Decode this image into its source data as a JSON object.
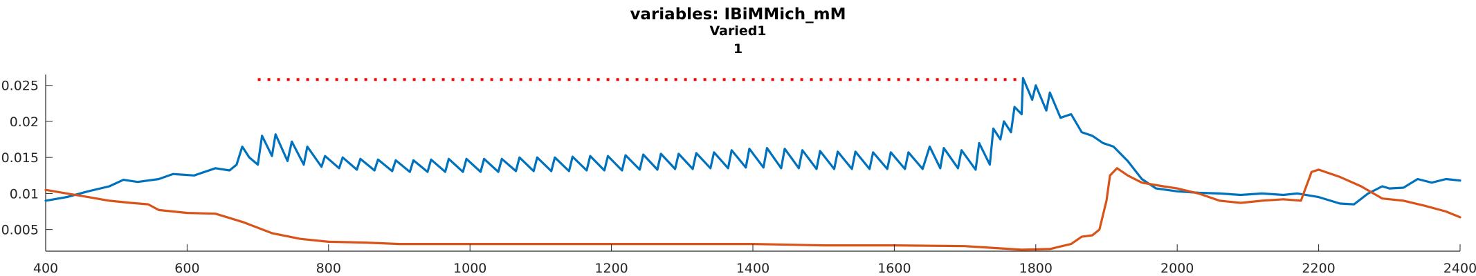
{
  "titles": [
    "variables: IBiMMich_mM",
    "Varied1",
    "1"
  ],
  "chart_data": {
    "type": "line",
    "title": "variables: IBiMMich_mM",
    "subtitle": [
      "Varied1",
      "1"
    ],
    "xlabel": "",
    "ylabel": "",
    "xlim": [
      400,
      2400
    ],
    "ylim": [
      0.002,
      0.0265
    ],
    "grid": false,
    "x_ticks": [
      400,
      600,
      800,
      1000,
      1200,
      1400,
      1600,
      1800,
      2000,
      2200,
      2400
    ],
    "x_tick_labels": [
      "400",
      "600",
      "800",
      "1000",
      "1200",
      "1400",
      "1600",
      "1800",
      "2000",
      "2200",
      "2400"
    ],
    "y_ticks": [
      0.005,
      0.01,
      0.015,
      0.02,
      0.025
    ],
    "y_tick_labels": [
      "0.005",
      "0.01",
      "0.015",
      "0.02",
      "0.025"
    ],
    "colors": {
      "blue": "#0072BD",
      "orange": "#D95319",
      "red": "#FF0000"
    },
    "series": [
      {
        "color": "#0072BD",
        "style": "solid",
        "points": [
          [
            400,
            0.009
          ],
          [
            430,
            0.0095
          ],
          [
            460,
            0.0103
          ],
          [
            490,
            0.011
          ],
          [
            510,
            0.0119
          ],
          [
            530,
            0.0116
          ],
          [
            560,
            0.012
          ],
          [
            580,
            0.0127
          ],
          [
            610,
            0.0125
          ],
          [
            640,
            0.0135
          ],
          [
            660,
            0.0132
          ],
          [
            670,
            0.014
          ],
          [
            678,
            0.0165
          ],
          [
            688,
            0.015
          ],
          [
            700,
            0.014
          ],
          [
            706,
            0.018
          ],
          [
            720,
            0.0152
          ],
          [
            725,
            0.0182
          ],
          [
            742,
            0.0145
          ],
          [
            748,
            0.0172
          ],
          [
            765,
            0.014
          ],
          [
            770,
            0.0165
          ],
          [
            790,
            0.0137
          ],
          [
            795,
            0.0152
          ],
          [
            815,
            0.0135
          ],
          [
            820,
            0.015
          ],
          [
            840,
            0.0133
          ],
          [
            845,
            0.0148
          ],
          [
            865,
            0.0132
          ],
          [
            870,
            0.0147
          ],
          [
            890,
            0.0131
          ],
          [
            895,
            0.0146
          ],
          [
            915,
            0.013
          ],
          [
            920,
            0.0146
          ],
          [
            940,
            0.013
          ],
          [
            945,
            0.0147
          ],
          [
            965,
            0.013
          ],
          [
            970,
            0.0148
          ],
          [
            990,
            0.013
          ],
          [
            995,
            0.0148
          ],
          [
            1015,
            0.013
          ],
          [
            1020,
            0.0148
          ],
          [
            1040,
            0.013
          ],
          [
            1045,
            0.0148
          ],
          [
            1065,
            0.0131
          ],
          [
            1070,
            0.015
          ],
          [
            1090,
            0.0131
          ],
          [
            1095,
            0.015
          ],
          [
            1115,
            0.0131
          ],
          [
            1120,
            0.015
          ],
          [
            1140,
            0.0131
          ],
          [
            1145,
            0.0151
          ],
          [
            1165,
            0.0132
          ],
          [
            1170,
            0.0152
          ],
          [
            1190,
            0.0132
          ],
          [
            1195,
            0.0152
          ],
          [
            1215,
            0.0132
          ],
          [
            1220,
            0.0153
          ],
          [
            1240,
            0.0133
          ],
          [
            1245,
            0.0154
          ],
          [
            1265,
            0.0133
          ],
          [
            1270,
            0.0155
          ],
          [
            1290,
            0.0134
          ],
          [
            1295,
            0.0155
          ],
          [
            1315,
            0.0134
          ],
          [
            1320,
            0.0156
          ],
          [
            1340,
            0.0135
          ],
          [
            1345,
            0.0157
          ],
          [
            1365,
            0.0135
          ],
          [
            1370,
            0.016
          ],
          [
            1390,
            0.0136
          ],
          [
            1395,
            0.0162
          ],
          [
            1415,
            0.0136
          ],
          [
            1420,
            0.0163
          ],
          [
            1440,
            0.0135
          ],
          [
            1445,
            0.0162
          ],
          [
            1465,
            0.0135
          ],
          [
            1470,
            0.016
          ],
          [
            1490,
            0.0134
          ],
          [
            1495,
            0.0159
          ],
          [
            1515,
            0.0134
          ],
          [
            1520,
            0.0158
          ],
          [
            1540,
            0.0134
          ],
          [
            1545,
            0.0158
          ],
          [
            1565,
            0.0134
          ],
          [
            1570,
            0.0157
          ],
          [
            1590,
            0.0134
          ],
          [
            1595,
            0.0157
          ],
          [
            1615,
            0.0134
          ],
          [
            1620,
            0.0157
          ],
          [
            1640,
            0.0134
          ],
          [
            1650,
            0.0165
          ],
          [
            1665,
            0.0135
          ],
          [
            1670,
            0.0163
          ],
          [
            1690,
            0.0135
          ],
          [
            1695,
            0.016
          ],
          [
            1715,
            0.0133
          ],
          [
            1720,
            0.017
          ],
          [
            1735,
            0.014
          ],
          [
            1740,
            0.019
          ],
          [
            1750,
            0.0175
          ],
          [
            1755,
            0.02
          ],
          [
            1765,
            0.0185
          ],
          [
            1770,
            0.022
          ],
          [
            1780,
            0.021
          ],
          [
            1782,
            0.026
          ],
          [
            1795,
            0.023
          ],
          [
            1800,
            0.025
          ],
          [
            1815,
            0.0215
          ],
          [
            1820,
            0.024
          ],
          [
            1835,
            0.0205
          ],
          [
            1850,
            0.021
          ],
          [
            1865,
            0.0185
          ],
          [
            1880,
            0.018
          ],
          [
            1895,
            0.017
          ],
          [
            1910,
            0.0165
          ],
          [
            1930,
            0.0145
          ],
          [
            1950,
            0.012
          ],
          [
            1970,
            0.0107
          ],
          [
            2000,
            0.0103
          ],
          [
            2030,
            0.0101
          ],
          [
            2060,
            0.01
          ],
          [
            2090,
            0.0098
          ],
          [
            2120,
            0.01
          ],
          [
            2150,
            0.0098
          ],
          [
            2170,
            0.01
          ],
          [
            2200,
            0.0095
          ],
          [
            2230,
            0.0086
          ],
          [
            2250,
            0.0085
          ],
          [
            2270,
            0.01
          ],
          [
            2290,
            0.011
          ],
          [
            2300,
            0.0107
          ],
          [
            2320,
            0.0108
          ],
          [
            2340,
            0.012
          ],
          [
            2360,
            0.0115
          ],
          [
            2380,
            0.012
          ],
          [
            2400,
            0.0118
          ]
        ]
      },
      {
        "color": "#D95319",
        "style": "solid",
        "points": [
          [
            400,
            0.0105
          ],
          [
            430,
            0.01
          ],
          [
            460,
            0.0095
          ],
          [
            490,
            0.009
          ],
          [
            520,
            0.0087
          ],
          [
            545,
            0.0085
          ],
          [
            560,
            0.0077
          ],
          [
            600,
            0.0073
          ],
          [
            640,
            0.0072
          ],
          [
            680,
            0.006
          ],
          [
            720,
            0.0045
          ],
          [
            760,
            0.0037
          ],
          [
            800,
            0.0033
          ],
          [
            850,
            0.0032
          ],
          [
            900,
            0.003
          ],
          [
            1000,
            0.003
          ],
          [
            1100,
            0.003
          ],
          [
            1200,
            0.003
          ],
          [
            1300,
            0.003
          ],
          [
            1400,
            0.003
          ],
          [
            1500,
            0.0028
          ],
          [
            1600,
            0.0028
          ],
          [
            1700,
            0.0027
          ],
          [
            1780,
            0.0022
          ],
          [
            1820,
            0.0023
          ],
          [
            1850,
            0.003
          ],
          [
            1865,
            0.004
          ],
          [
            1880,
            0.0042
          ],
          [
            1890,
            0.005
          ],
          [
            1900,
            0.009
          ],
          [
            1905,
            0.0125
          ],
          [
            1915,
            0.0135
          ],
          [
            1930,
            0.0125
          ],
          [
            1950,
            0.0115
          ],
          [
            1980,
            0.011
          ],
          [
            2000,
            0.0107
          ],
          [
            2030,
            0.01
          ],
          [
            2060,
            0.009
          ],
          [
            2090,
            0.0087
          ],
          [
            2120,
            0.009
          ],
          [
            2150,
            0.0092
          ],
          [
            2175,
            0.009
          ],
          [
            2190,
            0.013
          ],
          [
            2200,
            0.0133
          ],
          [
            2230,
            0.0123
          ],
          [
            2260,
            0.011
          ],
          [
            2290,
            0.0093
          ],
          [
            2320,
            0.009
          ],
          [
            2350,
            0.0083
          ],
          [
            2380,
            0.0075
          ],
          [
            2400,
            0.0067
          ]
        ]
      },
      {
        "color": "#FF0000",
        "style": "dotted",
        "points": [
          [
            700,
            0.0258
          ],
          [
            1780,
            0.0258
          ]
        ]
      }
    ]
  }
}
